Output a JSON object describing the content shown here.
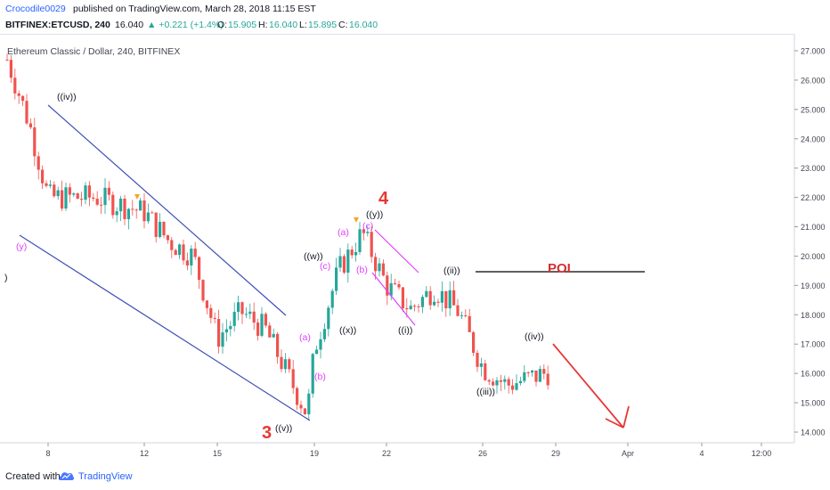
{
  "header": {
    "author": "Crocodile0029",
    "published_text": "published on TradingView.com, March 28, 2018 11:15 EST"
  },
  "quote": {
    "symbol": "BITFINEX:ETCUSD, 240",
    "last": "16.040",
    "change": "▲ +0.221 (+1.4%)",
    "o_label": "O:",
    "o": "15.905",
    "h_label": "H:",
    "h": "16.040",
    "l_label": "L:",
    "l": "15.895",
    "c_label": "C:",
    "c": "16.040"
  },
  "chart": {
    "legend": "Ethereum Classic / Dollar, 240, BITFINEX",
    "y_ticks": [
      "27.000",
      "26.000",
      "25.000",
      "24.000",
      "23.000",
      "22.000",
      "21.000",
      "20.000",
      "19.000",
      "18.000",
      "17.000",
      "16.000",
      "15.000",
      "14.000"
    ],
    "x_ticks": [
      "8",
      "12",
      "15",
      "19",
      "22",
      "26",
      "29",
      "Apr",
      "4",
      "12:00"
    ],
    "annotations": {
      "left_paren": ")",
      "iv_top": "((iv))",
      "y_pink": "(y)",
      "wave3": "3",
      "v_bottom": "((v))",
      "w": "((w))",
      "c_pink_1": "(c)",
      "a_pink_1": "(a)",
      "b_pink_1": "(b)",
      "x_wave": "((x))",
      "wave4": "4",
      "y_top": "((y))",
      "a_pink_2": "(a)",
      "c_pink_2": "(c)",
      "b_pink_2": "(b)",
      "ii": "((ii))",
      "i": "((i))",
      "poi": "POI",
      "iii": "((iii))",
      "iv_right": "((iv))"
    },
    "colors": {
      "up": "#26a69a",
      "down": "#ef5350",
      "channel": "#3f51b5",
      "pink": "#e040fb",
      "red_label": "#e53935"
    }
  },
  "chart_data": {
    "type": "candlestick",
    "symbol": "ETCUSD",
    "ylim": [
      13.5,
      27.4
    ],
    "y_ticks": [
      27,
      26,
      25,
      24,
      23,
      22,
      21,
      20,
      19,
      18,
      17,
      16,
      15,
      14
    ],
    "approx_path": [
      {
        "x": "Mar 6",
        "y": 26.7
      },
      {
        "x": "Mar 7",
        "y": 24.5
      },
      {
        "x": "Mar 8",
        "y": 22.0
      },
      {
        "x": "Mar 10",
        "y": 22.0
      },
      {
        "x": "Mar 12",
        "y": 21.5
      },
      {
        "x": "Mar 13",
        "y": 20.5
      },
      {
        "x": "Mar 14",
        "y": 20.0
      },
      {
        "x": "Mar 15",
        "y": 17.2
      },
      {
        "x": "Mar 16",
        "y": 18.1
      },
      {
        "x": "Mar 17",
        "y": 17.5
      },
      {
        "x": "Mar 18",
        "y": 14.6
      },
      {
        "x": "Mar 19",
        "y": 16.8
      },
      {
        "x": "Mar 20",
        "y": 19.5
      },
      {
        "x": "Mar 21",
        "y": 20.8
      },
      {
        "x": "Mar 22",
        "y": 19.0
      },
      {
        "x": "Mar 23",
        "y": 18.2
      },
      {
        "x": "Mar 24",
        "y": 18.9
      },
      {
        "x": "Mar 25",
        "y": 18.1
      },
      {
        "x": "Mar 26",
        "y": 16.2
      },
      {
        "x": "Mar 27",
        "y": 15.6
      },
      {
        "x": "Mar 28",
        "y": 16.04
      }
    ],
    "poi_level": 19.45,
    "projection": {
      "from": {
        "x": "Mar 29",
        "y": 16.9
      },
      "to": {
        "x": "Apr 1",
        "y": 14.1
      }
    }
  },
  "footer": {
    "created_with": "Created with",
    "brand": "TradingView"
  }
}
